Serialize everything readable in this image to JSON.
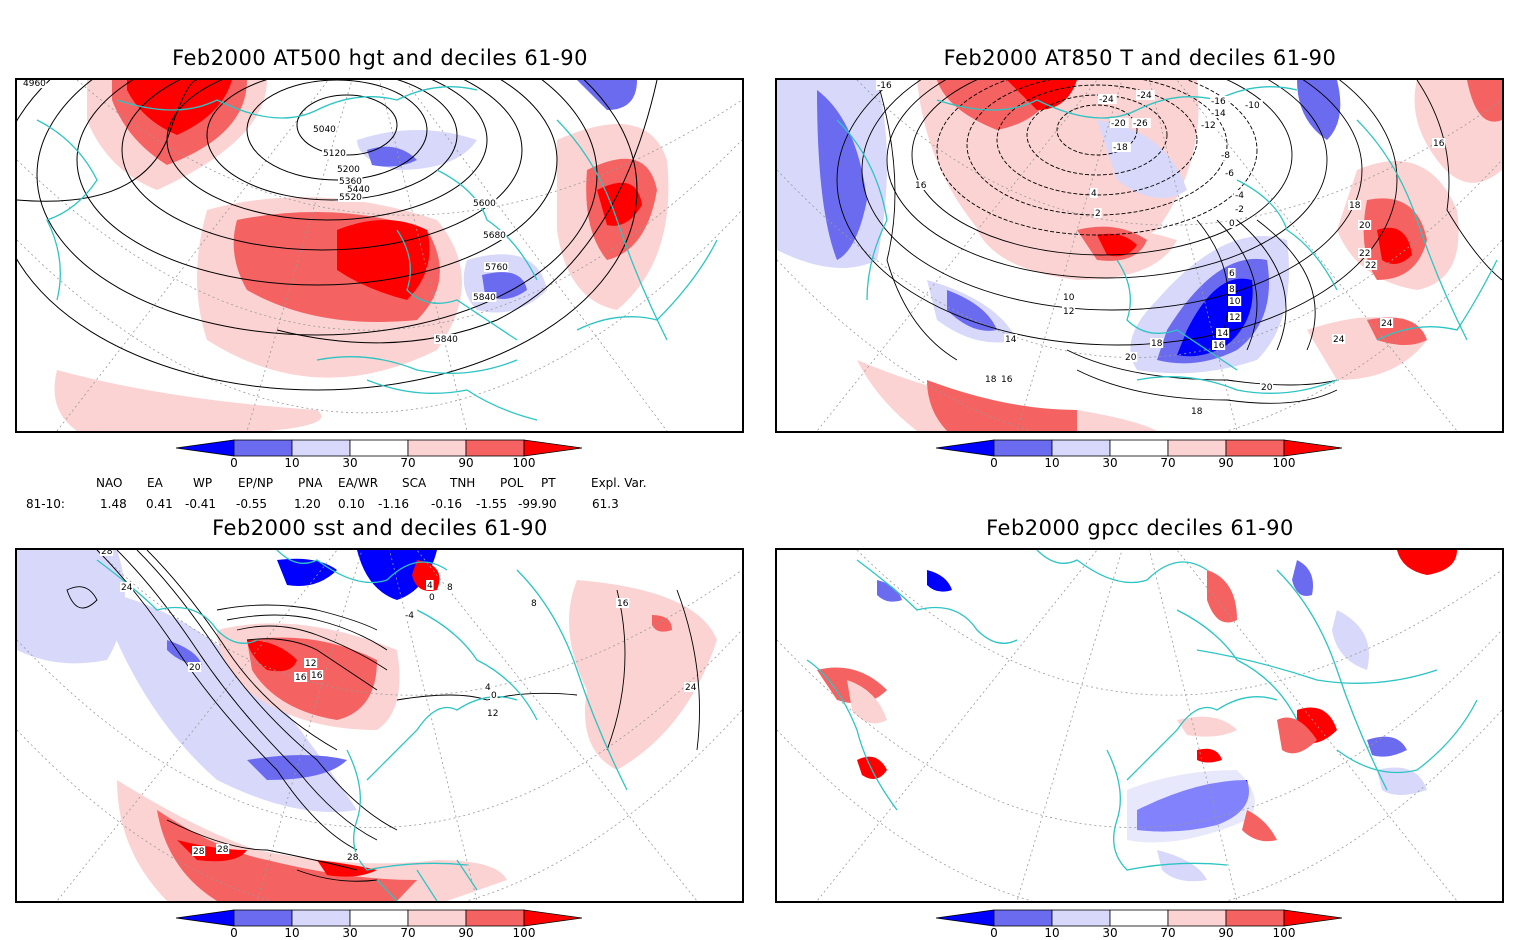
{
  "panels": [
    {
      "title": "Feb2000 AT500 hgt and deciles 61-90",
      "contour_labels": [
        "4960",
        "5040",
        "5120",
        "5200",
        "5360",
        "5440",
        "5520",
        "5600",
        "5680",
        "5760",
        "5840",
        "5840"
      ]
    },
    {
      "title": "Feb2000 AT850 T and deciles 61-90",
      "contour_labels": [
        "-16",
        "-24",
        "-24",
        "-26",
        "-20",
        "-18",
        "-16",
        "-14",
        "-12",
        "-10",
        "-8",
        "-6",
        "-4",
        "-2",
        "0",
        "2",
        "4",
        "6",
        "8",
        "10",
        "12",
        "14",
        "16",
        "18",
        "20",
        "22",
        "24",
        "10",
        "12",
        "14",
        "16",
        "18",
        "20",
        "22",
        "24",
        "16",
        "16",
        "18",
        "18",
        "20"
      ]
    },
    {
      "title": "Feb2000 sst and deciles 61-90",
      "contour_labels": [
        "28",
        "24",
        "20",
        "16",
        "12",
        "8",
        "4",
        "0",
        "-4",
        "8",
        "4",
        "0",
        "12",
        "16",
        "24",
        "28",
        "28",
        "28",
        "16"
      ]
    },
    {
      "title": "Feb2000 gpcc deciles 61-90",
      "contour_labels": []
    }
  ],
  "colorbar": {
    "labels": [
      "0",
      "10",
      "30",
      "70",
      "90",
      "100"
    ],
    "colors": [
      "#0000ff",
      "#6b6bf0",
      "#d8d8fa",
      "#ffffff",
      "#fbd3d3",
      "#f56262",
      "#ff0000"
    ]
  },
  "indices": {
    "headers": [
      "NAO",
      "EA",
      "WP",
      "EP/NP",
      "PNA",
      "EA/WR",
      "SCA",
      "TNH",
      "POL",
      "PT",
      "Expl. Var."
    ],
    "row_label": "81-10:",
    "values": [
      "1.48",
      "0.41",
      "-0.41",
      "-0.55",
      "1.20",
      "0.10",
      "-1.16",
      "-0.16",
      "-1.55",
      "-99.90",
      "61.3"
    ]
  },
  "colors": {
    "coast": "#2ec4c4",
    "grid": "#999999",
    "contour": "#000000"
  }
}
